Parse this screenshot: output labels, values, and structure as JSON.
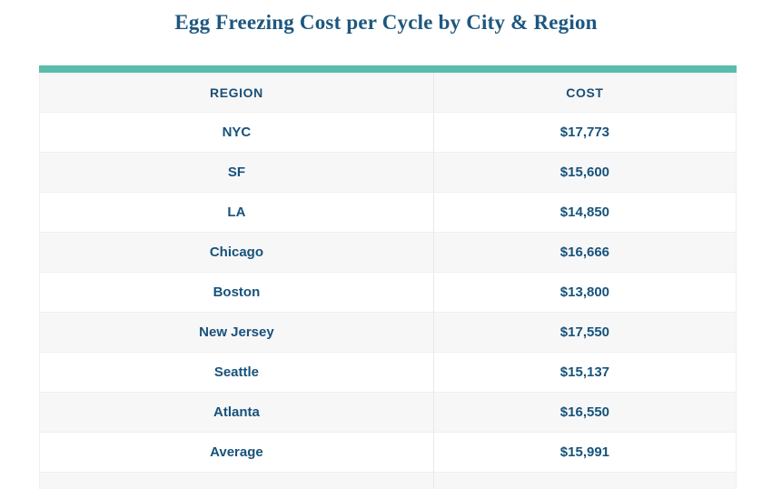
{
  "title": "Egg Freezing Cost per Cycle by City & Region",
  "colors": {
    "accent_bar": "#5abcab",
    "row_alt": "#f7f7f8",
    "text_blue": "#17527b",
    "title_blue": "#1d577f",
    "border": "#efefef"
  },
  "table": {
    "columns": [
      "REGION",
      "COST"
    ],
    "rows": [
      {
        "region": "NYC",
        "cost": "$17,773"
      },
      {
        "region": "SF",
        "cost": "$15,600"
      },
      {
        "region": "LA",
        "cost": "$14,850"
      },
      {
        "region": "Chicago",
        "cost": "$16,666"
      },
      {
        "region": "Boston",
        "cost": "$13,800"
      },
      {
        "region": "New Jersey",
        "cost": "$17,550"
      },
      {
        "region": "Seattle",
        "cost": "$15,137"
      },
      {
        "region": "Atlanta",
        "cost": "$16,550"
      },
      {
        "region": "Average",
        "cost": "$15,991"
      }
    ]
  },
  "chart_data": {
    "type": "table",
    "title": "Egg Freezing Cost per Cycle by City & Region",
    "columns": [
      "REGION",
      "COST"
    ],
    "categories": [
      "NYC",
      "SF",
      "LA",
      "Chicago",
      "Boston",
      "New Jersey",
      "Seattle",
      "Atlanta",
      "Average"
    ],
    "values": [
      17773,
      15600,
      14850,
      16666,
      13800,
      17550,
      15137,
      16550,
      15991
    ],
    "value_format": "USD",
    "layout": "two-column table, teal top accent bar, alternating white/light-gray rows, all cells center-aligned"
  }
}
